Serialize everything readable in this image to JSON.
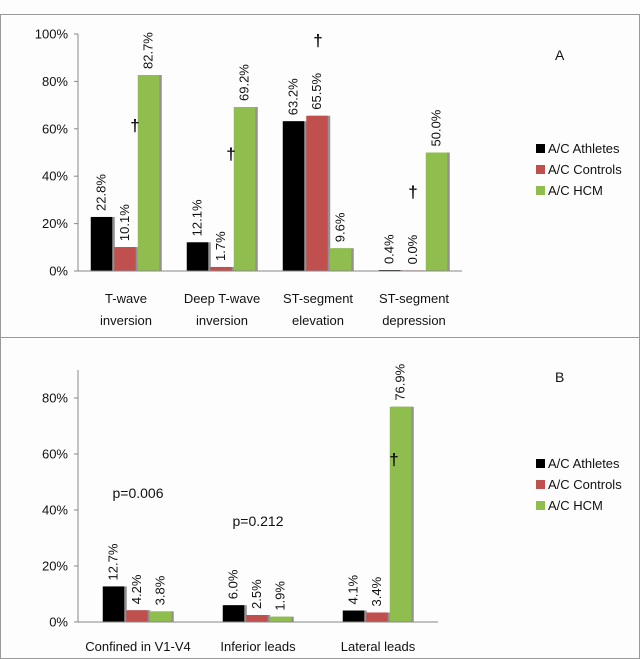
{
  "chart_data": [
    {
      "type": "bar",
      "panel_label": "A",
      "categories": [
        "T-wave inversion",
        "Deep T-wave inversion",
        "ST-segment elevation",
        "ST-segment depression"
      ],
      "category_lines": [
        [
          "T-wave",
          "inversion"
        ],
        [
          "Deep T-wave",
          "inversion"
        ],
        [
          "ST-segment",
          "elevation"
        ],
        [
          "ST-segment",
          "depression"
        ]
      ],
      "series": [
        {
          "name": "A/C Athletes",
          "color": "#000000",
          "values": [
            22.8,
            12.1,
            63.2,
            0.4
          ],
          "labels": [
            "22.8%",
            "12.1%",
            "63.2%",
            "0.4%"
          ]
        },
        {
          "name": "A/C Controls",
          "color": "#c0504d",
          "values": [
            10.1,
            1.7,
            65.5,
            0.0
          ],
          "labels": [
            "10.1%",
            "1.7%",
            "65.5%",
            "0.0%"
          ]
        },
        {
          "name": "A/C HCM",
          "color": "#8fbe4f",
          "values": [
            82.7,
            69.2,
            9.6,
            50.0
          ],
          "labels": [
            "82.7%",
            "69.2%",
            "9.6%",
            "50.0%"
          ]
        }
      ],
      "ylim": [
        0,
        100
      ],
      "yticks": [
        "0%",
        "20%",
        "40%",
        "60%",
        "80%",
        "100%"
      ],
      "ytick_values": [
        0,
        20,
        40,
        60,
        80,
        100
      ],
      "significance": [
        {
          "category": "T-wave inversion",
          "symbol": "†"
        },
        {
          "category": "Deep T-wave inversion",
          "symbol": "†"
        },
        {
          "category": "ST-segment elevation",
          "symbol": "†"
        },
        {
          "category": "ST-segment depression",
          "symbol": "†"
        }
      ],
      "legend": "right"
    },
    {
      "type": "bar",
      "panel_label": "B",
      "categories": [
        "Confined in V1-V4",
        "Inferior leads",
        "Lateral leads"
      ],
      "series": [
        {
          "name": "A/C Athletes",
          "color": "#000000",
          "values": [
            12.7,
            6.0,
            4.1
          ],
          "labels": [
            "12.7%",
            "6.0%",
            "4.1%"
          ]
        },
        {
          "name": "A/C Controls",
          "color": "#c0504d",
          "values": [
            4.2,
            2.5,
            3.4
          ],
          "labels": [
            "4.2%",
            "2.5%",
            "3.4%"
          ]
        },
        {
          "name": "A/C HCM",
          "color": "#8fbe4f",
          "values": [
            3.8,
            1.9,
            76.9
          ],
          "labels": [
            "3.8%",
            "1.9%",
            "76.9%"
          ]
        }
      ],
      "ylim": [
        0,
        90
      ],
      "yticks": [
        "0%",
        "20%",
        "40%",
        "60%",
        "80%"
      ],
      "ytick_values": [
        0,
        20,
        40,
        60,
        80
      ],
      "annotations": [
        {
          "category": "Confined in V1-V4",
          "text": "p=0.006"
        },
        {
          "category": "Inferior leads",
          "text": "p=0.212"
        }
      ],
      "significance": [
        {
          "category": "Lateral leads",
          "symbol": "†"
        }
      ],
      "legend": "right"
    }
  ]
}
